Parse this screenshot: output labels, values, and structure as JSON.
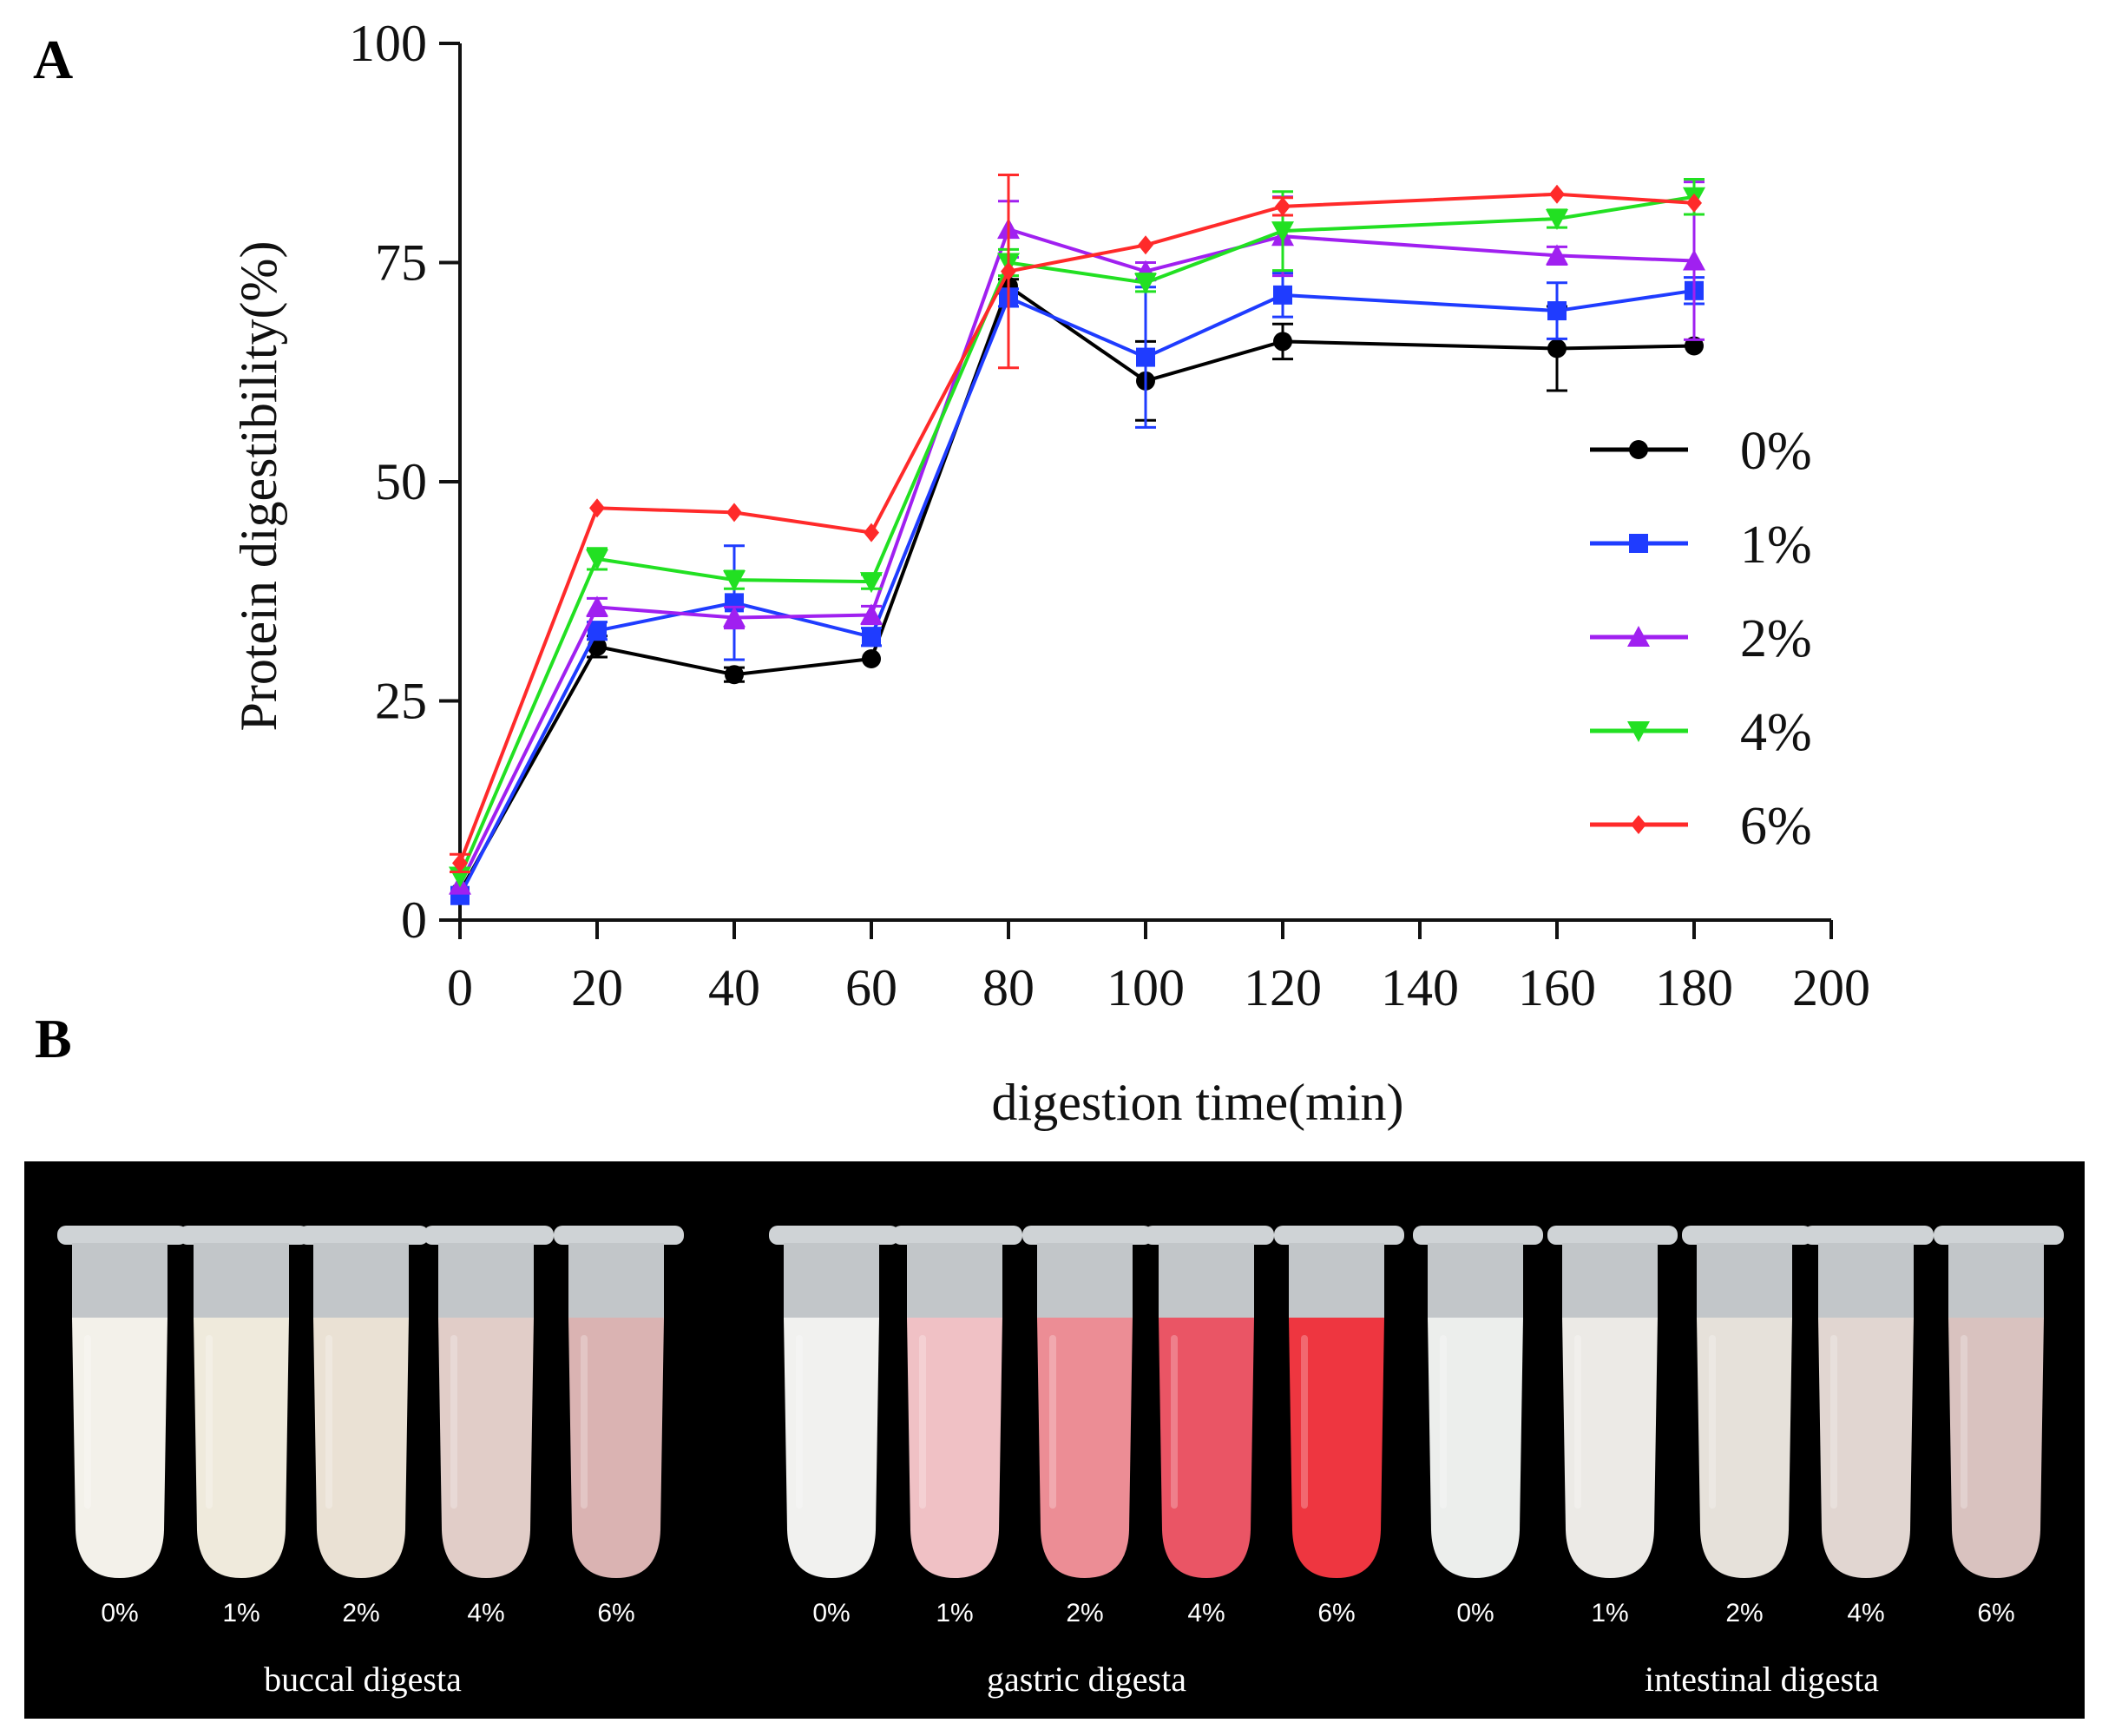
{
  "panels": {
    "a_label": "A",
    "b_label": "B"
  },
  "chart_data": {
    "type": "line",
    "title": "",
    "xlabel": "digestion time(min)",
    "ylabel": "Protein digestibility(%)",
    "xlim": [
      0,
      200
    ],
    "ylim": [
      0,
      100
    ],
    "xticks": [
      0,
      20,
      40,
      60,
      80,
      100,
      120,
      140,
      160,
      180,
      200
    ],
    "yticks": [
      0,
      25,
      50,
      75,
      100
    ],
    "x": [
      0,
      20,
      40,
      60,
      80,
      100,
      120,
      160,
      180
    ],
    "legend_position": "right",
    "series": [
      {
        "name": "0%",
        "color": "#000000",
        "marker": "circle",
        "values": [
          3.2,
          31.2,
          28.0,
          29.8,
          72.3,
          61.5,
          66.0,
          65.2,
          65.5
        ],
        "errors": [
          0.5,
          1.2,
          0.8,
          0.5,
          0.8,
          4.5,
          2.0,
          4.8,
          0.5
        ]
      },
      {
        "name": "1%",
        "color": "#1f3cff",
        "marker": "square",
        "values": [
          2.8,
          33.0,
          36.2,
          32.3,
          71.0,
          64.2,
          71.3,
          69.5,
          71.8
        ],
        "errors": [
          0.5,
          1.0,
          6.5,
          1.0,
          1.0,
          8.0,
          2.5,
          3.2,
          1.5
        ]
      },
      {
        "name": "2%",
        "color": "#a020f0",
        "marker": "triangle-up",
        "values": [
          4.0,
          35.7,
          34.5,
          34.8,
          78.8,
          74.0,
          78.0,
          75.8,
          75.2
        ],
        "errors": [
          0.5,
          1.0,
          1.2,
          1.0,
          3.2,
          1.0,
          4.5,
          1.0,
          9.0
        ]
      },
      {
        "name": "4%",
        "color": "#22e022",
        "marker": "triangle-down",
        "values": [
          5.0,
          41.2,
          38.8,
          38.6,
          75.0,
          72.7,
          78.6,
          80.0,
          82.5
        ],
        "errors": [
          0.5,
          1.2,
          1.0,
          0.8,
          1.5,
          1.0,
          4.5,
          1.0,
          2.0
        ]
      },
      {
        "name": "6%",
        "color": "#ff2a2a",
        "marker": "diamond",
        "values": [
          6.5,
          47.0,
          46.5,
          44.2,
          74.0,
          77.0,
          81.4,
          82.8,
          81.8
        ],
        "errors": [
          1.0,
          0.5,
          0.5,
          0.5,
          11.0,
          0.5,
          1.0,
          0.5,
          0.5
        ]
      }
    ]
  },
  "photo": {
    "groups": [
      {
        "name": "buccal digesta",
        "tubes": [
          {
            "label": "0%",
            "color": "#f3f1ea"
          },
          {
            "label": "1%",
            "color": "#efeadc"
          },
          {
            "label": "2%",
            "color": "#eae1d4"
          },
          {
            "label": "4%",
            "color": "#e1cdc8"
          },
          {
            "label": "6%",
            "color": "#dab3b2"
          }
        ]
      },
      {
        "name": "gastric digesta",
        "tubes": [
          {
            "label": "0%",
            "color": "#f1f1ef"
          },
          {
            "label": "1%",
            "color": "#f0c1c5"
          },
          {
            "label": "2%",
            "color": "#ec8d95"
          },
          {
            "label": "4%",
            "color": "#ea5565"
          },
          {
            "label": "6%",
            "color": "#ee3640"
          }
        ]
      },
      {
        "name": "intestinal digesta",
        "tubes": [
          {
            "label": "0%",
            "color": "#eceeec"
          },
          {
            "label": "1%",
            "color": "#eceae6"
          },
          {
            "label": "2%",
            "color": "#e6e1da"
          },
          {
            "label": "4%",
            "color": "#e1d6d1"
          },
          {
            "label": "6%",
            "color": "#d9c2bf"
          }
        ]
      }
    ]
  }
}
